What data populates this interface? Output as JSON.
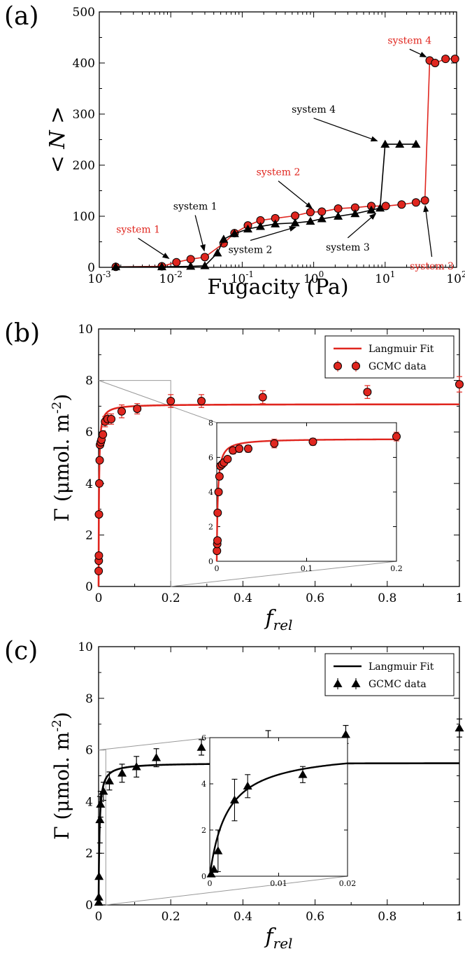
{
  "colors": {
    "red": "#e0261f",
    "black": "#000000",
    "zoom_line": "#999999"
  },
  "chart_data": [
    {
      "id": "a",
      "panel_label": "(a)",
      "type": "scatter",
      "xscale": "log",
      "xlabel": "Fugacity (Pa)",
      "ylabel": "< N >",
      "xlim": [
        0.001,
        100
      ],
      "ylim": [
        0,
        500
      ],
      "x_tick_labels": [
        "10-3",
        "10-2",
        "10-1",
        "100",
        "101",
        "102"
      ],
      "y_ticks": [
        0,
        100,
        200,
        300,
        400,
        500
      ],
      "series": [
        {
          "color": "red",
          "marker": "circle",
          "x": [
            0.0017,
            0.0075,
            0.012,
            0.019,
            0.03,
            0.055,
            0.078,
            0.12,
            0.18,
            0.29,
            0.55,
            0.9,
            1.3,
            2.2,
            3.8,
            6.4,
            10.2,
            17,
            27,
            36,
            42,
            50,
            70,
            95
          ],
          "y": [
            1,
            2,
            10,
            16,
            20,
            47,
            67,
            82,
            92,
            96,
            101,
            108,
            109,
            115,
            117,
            120,
            120,
            123,
            127,
            131,
            405,
            400,
            408,
            408
          ],
          "err": [
            0,
            0,
            0,
            0,
            0,
            0,
            0,
            0,
            0,
            0,
            0,
            0,
            0,
            0,
            0,
            0,
            0,
            0,
            0,
            0,
            0,
            0,
            0,
            0
          ]
        },
        {
          "color": "black",
          "marker": "triangle",
          "x": [
            0.0017,
            0.0075,
            0.019,
            0.03,
            0.045,
            0.055,
            0.078,
            0.12,
            0.18,
            0.29,
            0.55,
            0.9,
            1.3,
            2.2,
            3.8,
            6.4,
            8.5,
            10,
            16,
            27
          ],
          "y": [
            1,
            1,
            2,
            3,
            28,
            55,
            66,
            75,
            80,
            85,
            87,
            90,
            95,
            100,
            105,
            112,
            116,
            241,
            241,
            241
          ],
          "err": [
            0,
            0,
            0,
            0,
            0,
            8,
            0,
            0,
            0,
            0,
            0,
            0,
            0,
            0,
            0,
            0,
            0,
            0,
            0,
            0
          ]
        }
      ],
      "annotations": [
        {
          "text": "system 1",
          "color": "red",
          "tx": 0.0035,
          "ty": 68,
          "ax": 0.01,
          "ay": 15
        },
        {
          "text": "system 2",
          "color": "red",
          "tx": 0.32,
          "ty": 180,
          "ax": 1.0,
          "ay": 113
        },
        {
          "text": "system 3",
          "color": "red",
          "tx": 45,
          "ty": -4,
          "ax": 36,
          "ay": 125
        },
        {
          "text": "system 4",
          "color": "red",
          "tx": 22,
          "ty": 438,
          "ax": 40,
          "ay": 410
        },
        {
          "text": "system 1",
          "color": "black",
          "tx": 0.022,
          "ty": 113,
          "ax": 0.03,
          "ay": 28
        },
        {
          "text": "system 2",
          "color": "black",
          "tx": 0.13,
          "ty": 28,
          "ax": 0.6,
          "ay": 80
        },
        {
          "text": "system 3",
          "color": "black",
          "tx": 3.0,
          "ty": 33,
          "ax": 7.8,
          "ay": 108
        },
        {
          "text": "system 4",
          "color": "black",
          "tx": 1.0,
          "ty": 303,
          "ax": 8.3,
          "ay": 246
        }
      ]
    },
    {
      "id": "b",
      "panel_label": "(b)",
      "type": "scatter",
      "xlabel": "f",
      "xlabel_sub": "rel",
      "ylabel_main": "Γ (μmol. m",
      "ylabel_sup": "-2",
      "ylabel_end": ")",
      "xlim": [
        0,
        1
      ],
      "ylim": [
        0,
        10
      ],
      "x_ticks": [
        0,
        0.2,
        0.4,
        0.6,
        0.8,
        1
      ],
      "x_tick_labels": [
        "0",
        "0.2",
        "0.4",
        "0.6",
        "0.8",
        "1"
      ],
      "y_ticks": [
        0,
        2,
        4,
        6,
        8,
        10
      ],
      "legend": {
        "entries": [
          "Langmuir Fit",
          "GCMC data"
        ],
        "placement": "top-right"
      },
      "fit": {
        "type": "langmuir",
        "qmax": 7.08,
        "K": 900
      },
      "series": [
        {
          "name": "GCMC data",
          "color": "red",
          "marker": "circle",
          "x": [
            0.0002,
            0.0005,
            0.0008,
            0.001,
            0.002,
            0.003,
            0.004,
            0.006,
            0.008,
            0.012,
            0.018,
            0.025,
            0.035,
            0.064,
            0.107,
            0.2,
            0.285,
            0.455,
            0.745,
            1.0
          ],
          "y": [
            0.6,
            1.0,
            1.2,
            2.8,
            4.0,
            4.9,
            5.5,
            5.6,
            5.7,
            5.9,
            6.4,
            6.5,
            6.5,
            6.8,
            6.9,
            7.2,
            7.2,
            7.35,
            7.55,
            7.85
          ],
          "err": [
            0,
            0,
            0,
            0,
            0,
            0,
            0.1,
            0.1,
            0.15,
            0.15,
            0.2,
            0.2,
            0.2,
            0.25,
            0.2,
            0.25,
            0.25,
            0.25,
            0.25,
            0.3
          ]
        }
      ],
      "inset": {
        "xlim": [
          0,
          0.2
        ],
        "ylim": [
          0,
          8
        ],
        "x_ticks": [
          0,
          0.1,
          0.2
        ],
        "x_tick_labels": [
          "0",
          "0.1",
          "0.2"
        ],
        "y_ticks": [
          0,
          2,
          4,
          6,
          8
        ]
      }
    },
    {
      "id": "c",
      "panel_label": "(c)",
      "type": "scatter",
      "xlabel": "f",
      "xlabel_sub": "rel",
      "ylabel_main": "Γ (μmol. m",
      "ylabel_sup": "-2",
      "ylabel_end": ")",
      "xlim": [
        0,
        1
      ],
      "ylim": [
        0,
        10
      ],
      "x_ticks": [
        0,
        0.2,
        0.4,
        0.6,
        0.8,
        1
      ],
      "x_tick_labels": [
        "0",
        "0.2",
        "0.4",
        "0.6",
        "0.8",
        "1"
      ],
      "y_ticks": [
        0,
        2,
        4,
        6,
        8,
        10
      ],
      "legend": {
        "entries": [
          "Langmuir Fit",
          "GCMC data"
        ],
        "placement": "top-right"
      },
      "fit": {
        "type": "langmuir",
        "qmax": 5.5,
        "K": 400
      },
      "series": [
        {
          "name": "GCMC data",
          "color": "black",
          "marker": "triangle",
          "x": [
            0.0002,
            0.0006,
            0.0012,
            0.0036,
            0.0055,
            0.0135,
            0.03,
            0.065,
            0.105,
            0.16,
            0.285,
            0.47,
            0.685,
            1.0
          ],
          "y": [
            0.1,
            0.3,
            1.1,
            3.3,
            3.9,
            4.4,
            4.8,
            5.1,
            5.35,
            5.7,
            6.1,
            6.35,
            6.6,
            6.85
          ],
          "err": [
            0,
            0,
            0.9,
            0.9,
            0.5,
            0.35,
            0.35,
            0.35,
            0.4,
            0.35,
            0.3,
            0.4,
            0.35,
            0.35
          ]
        }
      ],
      "inset": {
        "xlim": [
          0,
          0.02
        ],
        "ylim": [
          0,
          6
        ],
        "x_ticks": [
          0,
          0.01,
          0.02
        ],
        "x_tick_labels": [
          "0",
          "0.01",
          "0.02"
        ],
        "y_ticks": [
          0,
          2,
          4,
          6
        ]
      }
    }
  ]
}
